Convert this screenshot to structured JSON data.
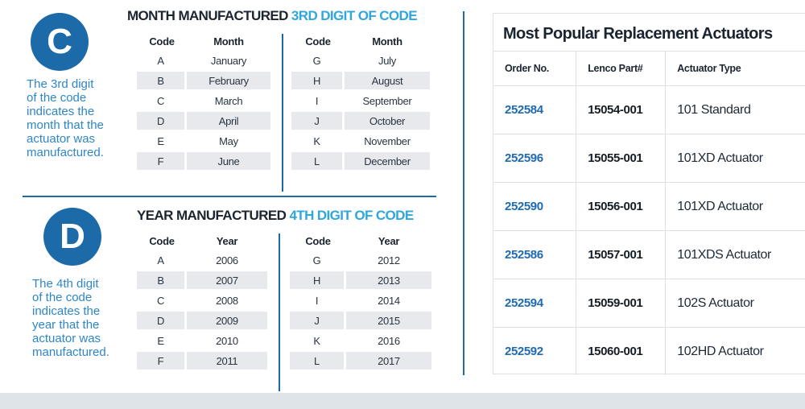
{
  "month_section": {
    "badge": "C",
    "title_main": "MONTH MANUFACTURED",
    "title_highlight": "3RD DIGIT OF CODE",
    "description": "The 3rd digit\nof the code\nindicates the\nmonth that the\nactuator was\nmanufactured.",
    "headers": {
      "code": "Code",
      "value": "Month"
    },
    "left_rows": [
      {
        "code": "A",
        "value": "January"
      },
      {
        "code": "B",
        "value": "February"
      },
      {
        "code": "C",
        "value": "March"
      },
      {
        "code": "D",
        "value": "April"
      },
      {
        "code": "E",
        "value": "May"
      },
      {
        "code": "F",
        "value": "June"
      }
    ],
    "right_rows": [
      {
        "code": "G",
        "value": "July"
      },
      {
        "code": "H",
        "value": "August"
      },
      {
        "code": "I",
        "value": "September"
      },
      {
        "code": "J",
        "value": "October"
      },
      {
        "code": "K",
        "value": "November"
      },
      {
        "code": "L",
        "value": "December"
      }
    ]
  },
  "year_section": {
    "badge": "D",
    "title_main": "YEAR MANUFACTURED",
    "title_highlight": "4TH DIGIT OF CODE",
    "description": "The 4th digit\nof the code\nindicates the\nyear that the\nactuator was\nmanufactured.",
    "headers": {
      "code": "Code",
      "value": "Year"
    },
    "left_rows": [
      {
        "code": "A",
        "value": "2006"
      },
      {
        "code": "B",
        "value": "2007"
      },
      {
        "code": "C",
        "value": "2008"
      },
      {
        "code": "D",
        "value": "2009"
      },
      {
        "code": "E",
        "value": "2010"
      },
      {
        "code": "F",
        "value": "2011"
      }
    ],
    "right_rows": [
      {
        "code": "G",
        "value": "2012"
      },
      {
        "code": "H",
        "value": "2013"
      },
      {
        "code": "I",
        "value": "2014"
      },
      {
        "code": "J",
        "value": "2015"
      },
      {
        "code": "K",
        "value": "2016"
      },
      {
        "code": "L",
        "value": "2017"
      }
    ]
  },
  "popular": {
    "title": "Most Popular Replacement Actuators",
    "headers": {
      "order": "Order No.",
      "part": "Lenco Part#",
      "type": "Actuator Type"
    },
    "rows": [
      {
        "order": "252584",
        "part": "15054-001",
        "type": "101 Standard"
      },
      {
        "order": "252596",
        "part": "15055-001",
        "type": "101XD Actuator"
      },
      {
        "order": "252590",
        "part": "15056-001",
        "type": "101XD Actuator"
      },
      {
        "order": "252586",
        "part": "15057-001",
        "type": "101XDS Actuator"
      },
      {
        "order": "252594",
        "part": "15059-001",
        "type": "102S Actuator"
      },
      {
        "order": "252592",
        "part": "15060-001",
        "type": "102HD Actuator"
      }
    ]
  },
  "colors": {
    "accent": "#1c6aa8",
    "highlight": "#30a7dc",
    "description": "#2e86c8"
  }
}
